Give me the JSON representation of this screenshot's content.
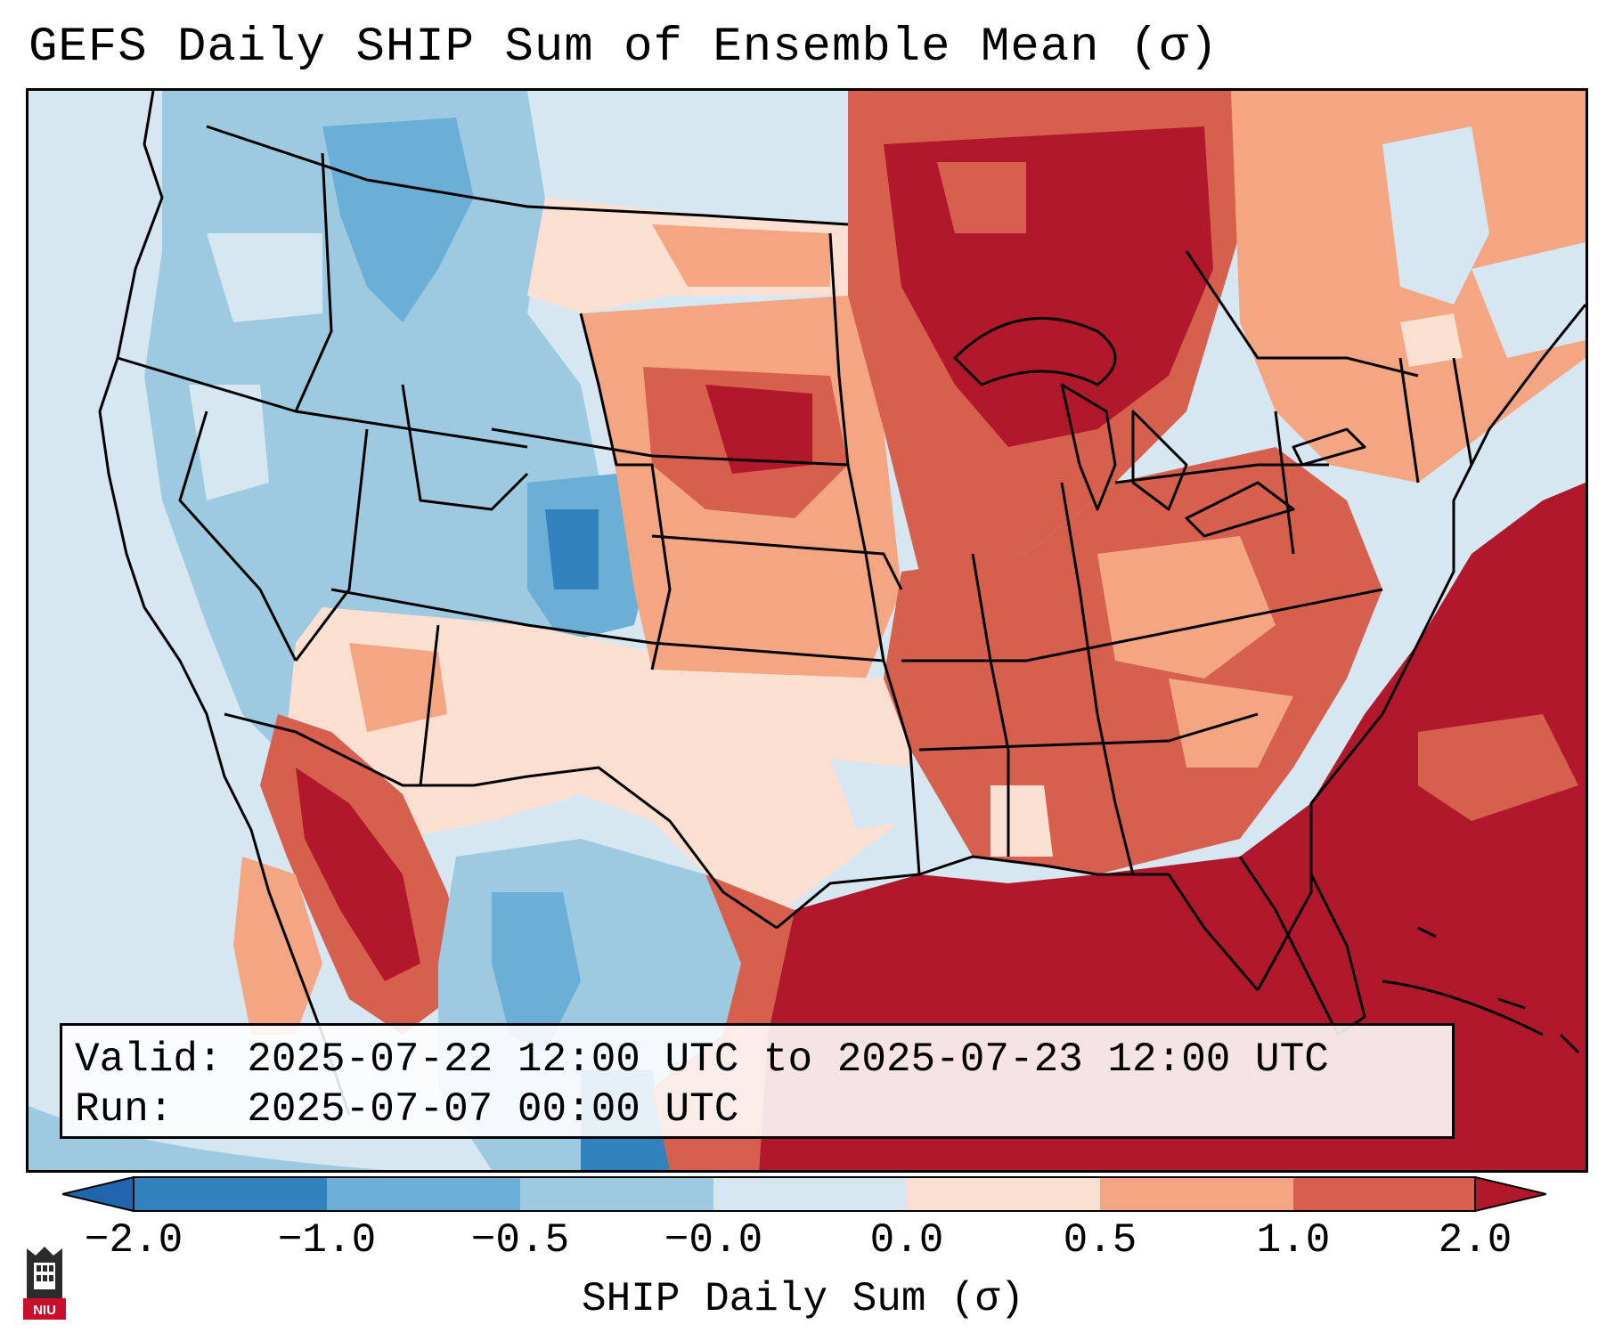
{
  "title": "GEFS Daily SHIP Sum of Ensemble Mean (σ)",
  "info": {
    "valid_line": "Valid: 2025-07-22 12:00 UTC to 2025-07-23 12:00 UTC",
    "run_line": "Run:   2025-07-07 00:00 UTC"
  },
  "colorbar": {
    "label": "SHIP Daily Sum (σ)",
    "ticks": [
      "−2.0",
      "−1.0",
      "−0.5",
      "−0.0",
      "0.0",
      "0.5",
      "1.0",
      "2.0"
    ],
    "colors": [
      "#3182bd",
      "#6baed6",
      "#9ecae1",
      "#d6e7f2",
      "#fbe0d2",
      "#f4a582",
      "#d6604d",
      "#b2182b"
    ],
    "extend": "both"
  },
  "logo": {
    "text": "NIU",
    "icon": "university-tower-icon"
  }
}
